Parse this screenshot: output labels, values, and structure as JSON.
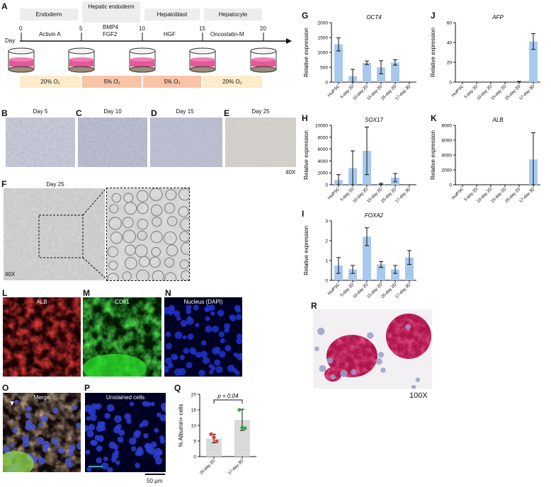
{
  "panel_labels": [
    "A",
    "B",
    "C",
    "D",
    "E",
    "F",
    "G",
    "H",
    "I",
    "J",
    "K",
    "L",
    "M",
    "N",
    "O",
    "P",
    "Q",
    "R"
  ],
  "timeline": {
    "stages": [
      "Endoderm",
      "Hepatic endoderm",
      "Hepatoblast",
      "Hepatocyte"
    ],
    "day_label": "Day",
    "ticks": [
      "0",
      "5",
      "10",
      "15",
      "20"
    ],
    "factors": [
      "Activin A",
      "BMP4",
      "FGF2",
      "HGF",
      "Oncostatin-M"
    ],
    "oxygen": [
      "20% O₂",
      "5% O₂",
      "5% O₂",
      "20% O₂"
    ],
    "colors": {
      "peach_light": "#fdebc9",
      "salmon": "#f8c3a7",
      "dish_pink": "#e8579a",
      "stage_gray": "#ededed"
    }
  },
  "micrographs": {
    "B_title": "Day 5",
    "C_title": "Day 10",
    "D_title": "Day 15",
    "E_title": "Day 25",
    "magnification": "40X",
    "F_title": "Day 25",
    "F_magnification": "40X"
  },
  "fluorescence": {
    "L_title": "ALB",
    "M_title": "CD81",
    "N_title": "Nucleus (DAPI)",
    "O_title": "Merge",
    "P_title": "Unstained cells",
    "scale_bar": "50 μm"
  },
  "stain": {
    "R_magnification": "100X"
  },
  "chart_data": [
    {
      "panel": "G",
      "type": "bar",
      "title": "OCT4",
      "ylabel": "Relative expression",
      "categories": [
        "HuiPSC",
        "5-day 2D",
        "10-day 2D",
        "15-day 2D",
        "25-day 2D",
        "17-day 3D"
      ],
      "values": [
        1270,
        200,
        650,
        500,
        660,
        0
      ],
      "errors": [
        220,
        230,
        60,
        220,
        90,
        0
      ],
      "ylim": [
        0,
        2000
      ],
      "yticks": [
        "0",
        "500",
        "1000",
        "1500",
        "2000"
      ],
      "bar_color": "#a8c9ee"
    },
    {
      "panel": "J",
      "type": "bar",
      "title": "AFP",
      "ylabel": "Relative expression",
      "categories": [
        "HuiPSC",
        "5-day 2D",
        "10-day 2D",
        "15-day 2D",
        "25-day 2D",
        "17-day 3D"
      ],
      "values": [
        0,
        0,
        0,
        0,
        0.2,
        41
      ],
      "errors": [
        0,
        0,
        0,
        0,
        0.6,
        8
      ],
      "ylim": [
        0,
        60
      ],
      "yticks": [
        "0",
        "20",
        "40",
        "60"
      ],
      "bar_color": "#a8c9ee"
    },
    {
      "panel": "H",
      "type": "bar",
      "title": "SOX17",
      "ylabel": "Relative expression",
      "categories": [
        "HuiPSC",
        "5-day 2D",
        "10-day 2D",
        "15-day 2D",
        "25-day 2D",
        "17-day 3D"
      ],
      "values": [
        800,
        2800,
        5700,
        150,
        1200,
        0
      ],
      "errors": [
        900,
        2900,
        4000,
        100,
        700,
        0
      ],
      "ylim": [
        0,
        10000
      ],
      "yticks": [
        "0",
        "2000",
        "4000",
        "6000",
        "8000",
        "10000"
      ],
      "bar_color": "#a8c9ee"
    },
    {
      "panel": "K",
      "type": "bar",
      "title": "ALB",
      "ylabel": "Relative expression",
      "categories": [
        "HuiPSC",
        "5-day 2D",
        "10-day 2D",
        "15-day 2D",
        "25-day 2D",
        "17-day 3D"
      ],
      "values": [
        0,
        0,
        0,
        0,
        0,
        3400
      ],
      "errors": [
        0,
        0,
        0,
        0,
        0,
        3600
      ],
      "ylim": [
        0,
        8000
      ],
      "yticks": [
        "0",
        "2000",
        "4000",
        "6000",
        "8000"
      ],
      "bar_color": "#a8c9ee"
    },
    {
      "panel": "I",
      "type": "bar",
      "title": "FOXA2",
      "ylabel": "Relative expression",
      "categories": [
        "HuiPSC",
        "5-day 2D",
        "10-day 2D",
        "15-day 2D",
        "25-day 2D",
        "17-day 3D"
      ],
      "values": [
        0.75,
        0.55,
        2.2,
        0.8,
        0.55,
        1.15
      ],
      "errors": [
        0.4,
        0.2,
        0.45,
        0.15,
        0.2,
        0.35
      ],
      "ylim": [
        0,
        3
      ],
      "yticks": [
        "0",
        "1",
        "2",
        "3"
      ],
      "bar_color": "#a8c9ee"
    },
    {
      "panel": "Q",
      "type": "bar",
      "title": "",
      "ylabel": "% Albumin+ cells",
      "categories": [
        "25-day 2D",
        "17-day-3D"
      ],
      "values": [
        5.8,
        11.8
      ],
      "errors": [
        1.4,
        3.4
      ],
      "points": [
        [
          7.2,
          6.2,
          4.9
        ],
        [
          15.0,
          9.3,
          9.1
        ]
      ],
      "point_colors": [
        "#e53935",
        "#43a047"
      ],
      "ylim": [
        0,
        20
      ],
      "yticks": [
        "0",
        "5",
        "10",
        "15",
        "20"
      ],
      "annotation": "p = 0.04",
      "bar_color": "#d9d9d9"
    }
  ]
}
